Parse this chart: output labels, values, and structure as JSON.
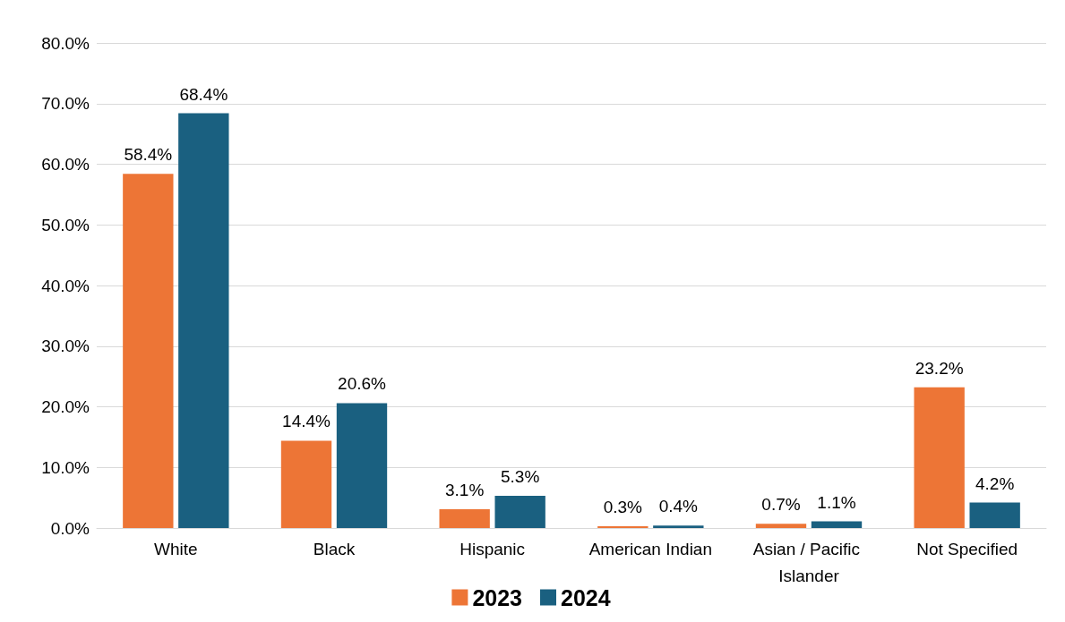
{
  "chart_data": {
    "type": "bar",
    "categories": [
      "White",
      "Black",
      "Hispanic",
      "American Indian",
      "Asian / Pacific Islander",
      "Not Specified"
    ],
    "series": [
      {
        "name": "2023",
        "color": "#ed7536",
        "values": [
          58.4,
          14.4,
          3.1,
          0.3,
          0.7,
          23.2
        ],
        "value_labels": [
          "58.4%",
          "14.4%",
          "3.1%",
          "0.3%",
          "0.7%",
          "23.2%"
        ]
      },
      {
        "name": "2024",
        "color": "#1a6080",
        "values": [
          68.4,
          20.6,
          5.3,
          0.4,
          1.1,
          4.2
        ],
        "value_labels": [
          "68.4%",
          "20.6%",
          "5.3%",
          "0.4%",
          "1.1%",
          "4.2%"
        ]
      }
    ],
    "ylim": [
      0,
      80
    ],
    "yticks": [
      {
        "value": 0,
        "label": "0.0%"
      },
      {
        "value": 10,
        "label": "10.0%"
      },
      {
        "value": 20,
        "label": "20.0%"
      },
      {
        "value": 30,
        "label": "30.0%"
      },
      {
        "value": 40,
        "label": "40.0%"
      },
      {
        "value": 50,
        "label": "50.0%"
      },
      {
        "value": 60,
        "label": "60.0%"
      },
      {
        "value": 70,
        "label": "70.0%"
      },
      {
        "value": 80,
        "label": "80.0%"
      }
    ],
    "grid": "y",
    "legend": "bottom"
  }
}
